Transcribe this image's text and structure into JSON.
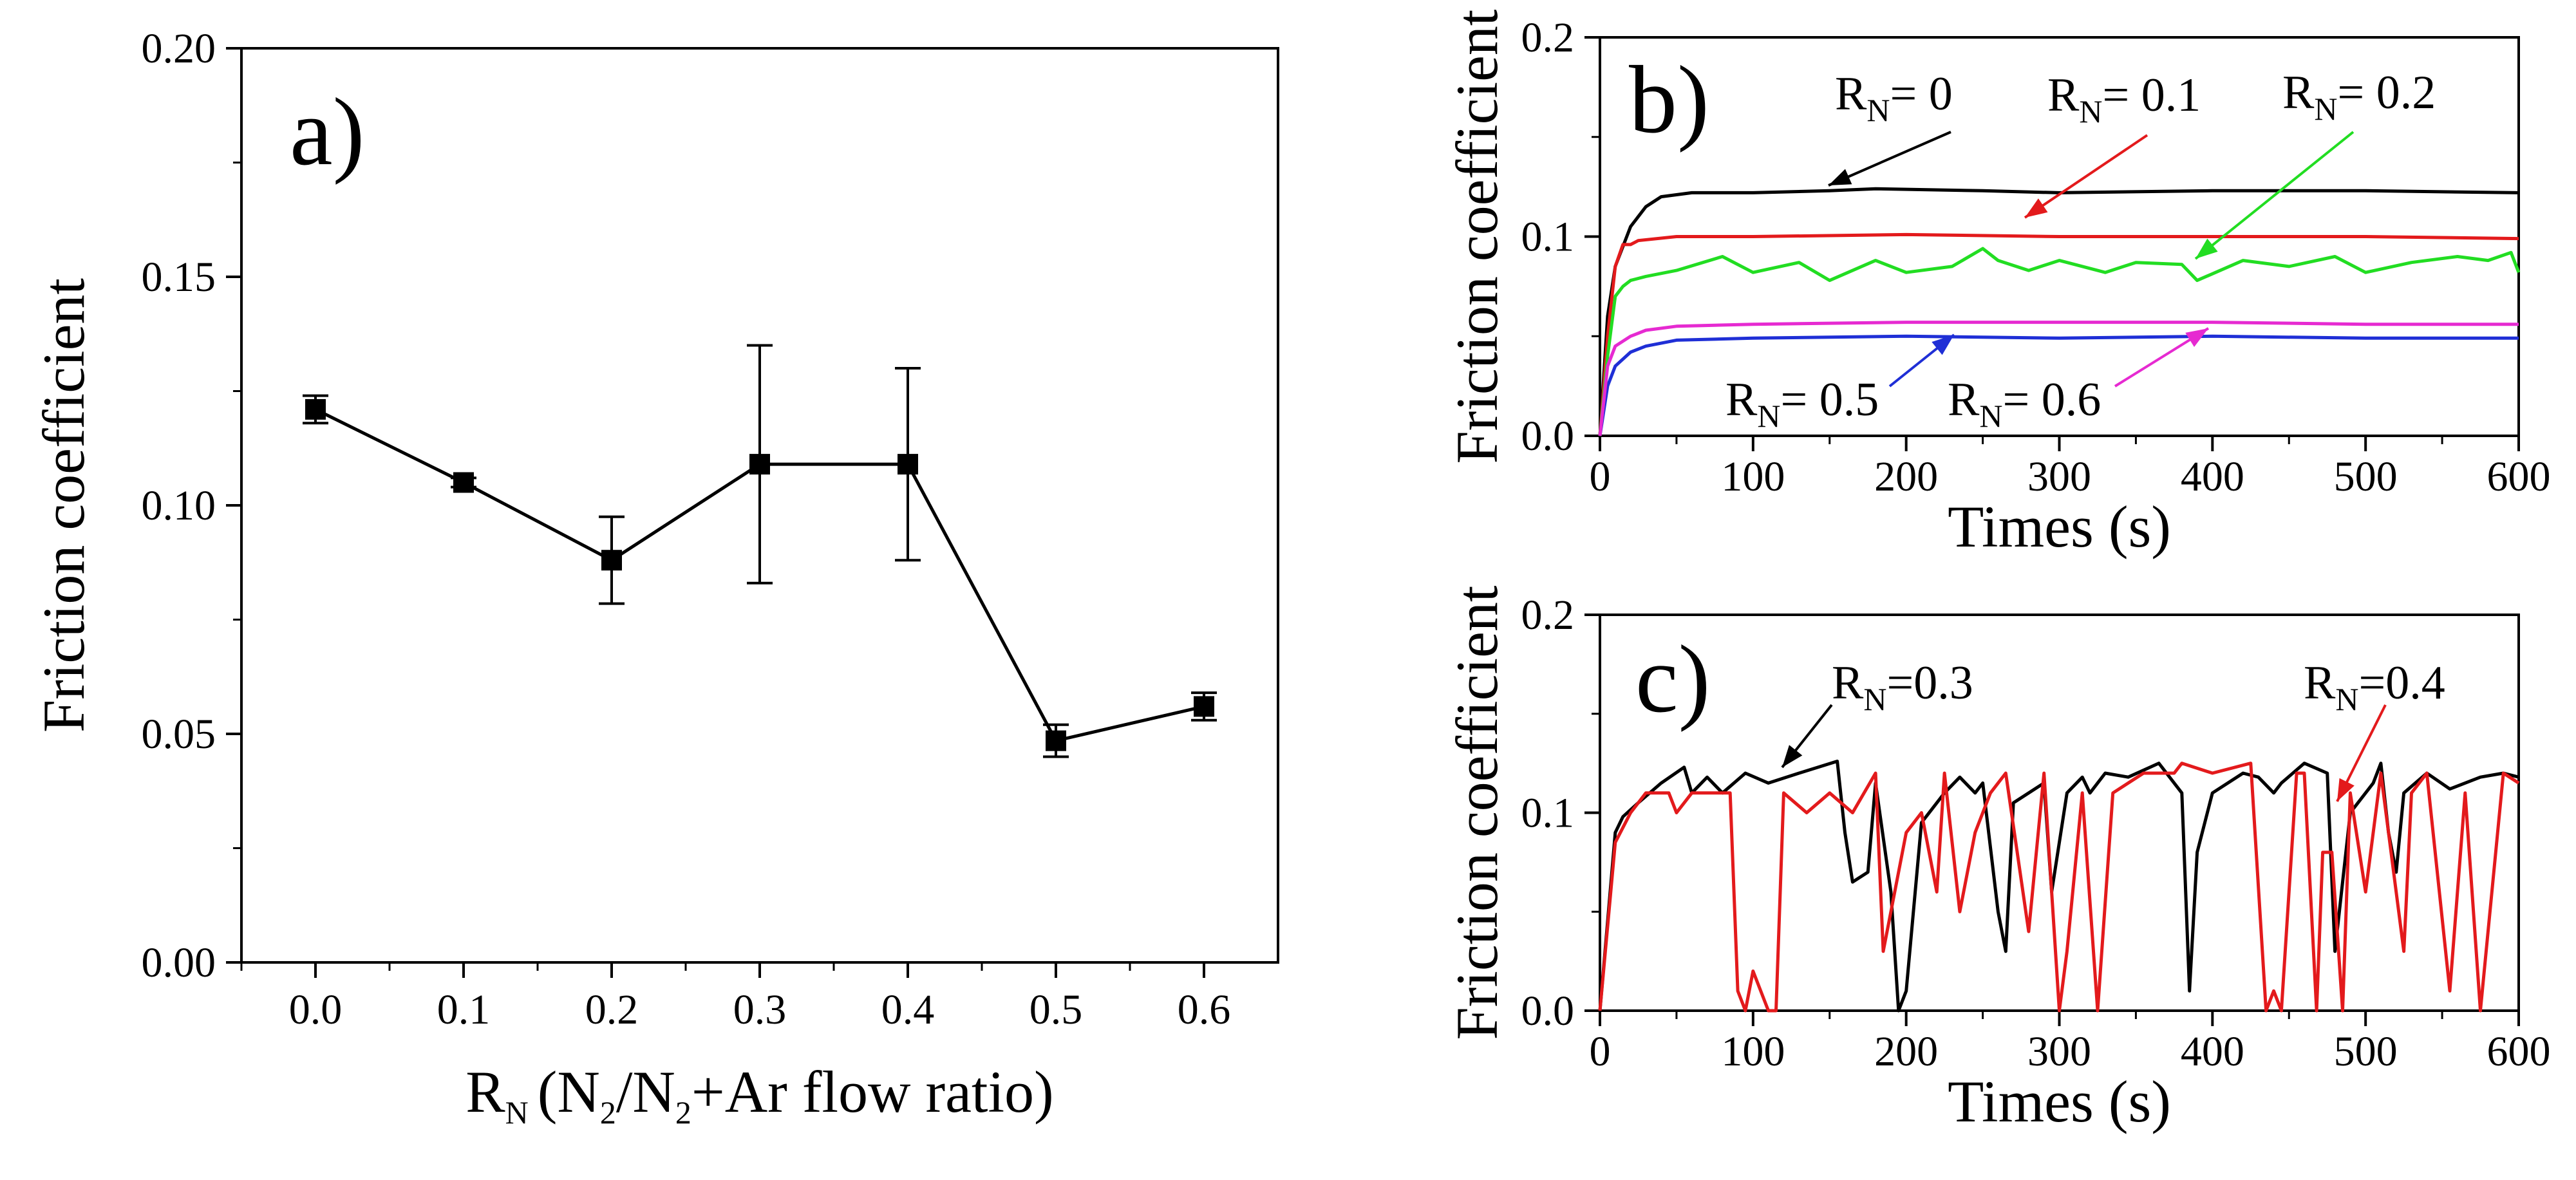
{
  "chart_data": [
    {
      "id": "a",
      "type": "line",
      "panel_label": "a)",
      "xlabel_main": "R",
      "xlabel_sub": "N",
      "xlabel_rest": "(N",
      "xlabel_sub2": "2",
      "xlabel_rest2": "/N",
      "xlabel_sub3": "2",
      "xlabel_rest3": "+Ar flow ratio)",
      "ylabel": "Friction coefficient",
      "xlim": [
        -0.05,
        0.65
      ],
      "ylim": [
        0,
        0.2
      ],
      "xticks": [
        "0.0",
        "0.1",
        "0.2",
        "0.3",
        "0.4",
        "0.5",
        "0.6"
      ],
      "yticks": [
        "0.00",
        "0.05",
        "0.10",
        "0.15",
        "0.20"
      ],
      "x": [
        0.0,
        0.1,
        0.2,
        0.3,
        0.4,
        0.5,
        0.6
      ],
      "y": [
        0.121,
        0.105,
        0.088,
        0.109,
        0.109,
        0.0485,
        0.056
      ],
      "err": [
        0.003,
        0.001,
        0.0095,
        0.026,
        0.021,
        0.0035,
        0.003
      ],
      "color": "#000000"
    },
    {
      "id": "b",
      "type": "line",
      "panel_label": "b)",
      "xlabel": "Times (s)",
      "ylabel": "Friction coefficient",
      "xlim": [
        0,
        600
      ],
      "ylim": [
        0,
        0.2
      ],
      "xticks": [
        "0",
        "100",
        "200",
        "300",
        "400",
        "500",
        "600"
      ],
      "yticks": [
        "0.0",
        "0.1",
        "0.2"
      ],
      "series": [
        {
          "name": "R_N = 0",
          "label_main": "R",
          "label_sub": "N",
          "label_rest": "= 0",
          "color": "#000000",
          "x": [
            0,
            5,
            10,
            20,
            30,
            40,
            60,
            100,
            150,
            180,
            250,
            300,
            400,
            500,
            600
          ],
          "y": [
            0,
            0.06,
            0.085,
            0.105,
            0.115,
            0.12,
            0.122,
            0.122,
            0.123,
            0.124,
            0.123,
            0.122,
            0.123,
            0.123,
            0.122
          ]
        },
        {
          "name": "R_N = 0.1",
          "label_main": "R",
          "label_sub": "N",
          "label_rest": "= 0.1",
          "color": "#e31a1c",
          "x": [
            0,
            5,
            10,
            15,
            20,
            25,
            50,
            100,
            200,
            300,
            400,
            500,
            600
          ],
          "y": [
            0,
            0.05,
            0.085,
            0.096,
            0.096,
            0.098,
            0.1,
            0.1,
            0.101,
            0.1,
            0.1,
            0.1,
            0.099
          ]
        },
        {
          "name": "R_N = 0.2",
          "label_main": "R",
          "label_sub": "N",
          "label_rest": "= 0.2",
          "color": "#22dd22",
          "x": [
            0,
            5,
            10,
            15,
            20,
            30,
            50,
            80,
            100,
            130,
            150,
            180,
            200,
            230,
            250,
            260,
            280,
            300,
            330,
            350,
            380,
            390,
            420,
            450,
            480,
            500,
            530,
            560,
            580,
            595,
            600
          ],
          "y": [
            0,
            0.04,
            0.07,
            0.075,
            0.078,
            0.08,
            0.083,
            0.09,
            0.082,
            0.087,
            0.078,
            0.088,
            0.082,
            0.085,
            0.094,
            0.088,
            0.083,
            0.088,
            0.082,
            0.087,
            0.086,
            0.078,
            0.088,
            0.085,
            0.09,
            0.082,
            0.087,
            0.09,
            0.088,
            0.092,
            0.082
          ]
        },
        {
          "name": "R_N = 0.5",
          "label_main": "R",
          "label_sub": "N",
          "label_rest": "= 0.5",
          "color": "#1f2fd6",
          "x": [
            0,
            5,
            10,
            20,
            30,
            50,
            100,
            200,
            300,
            400,
            500,
            600
          ],
          "y": [
            0,
            0.025,
            0.035,
            0.042,
            0.045,
            0.048,
            0.049,
            0.05,
            0.049,
            0.05,
            0.049,
            0.049
          ]
        },
        {
          "name": "R_N = 0.6",
          "label_main": "R",
          "label_sub": "N",
          "label_rest": "= 0.6",
          "color": "#e62ad1",
          "x": [
            0,
            5,
            10,
            20,
            30,
            50,
            100,
            200,
            300,
            400,
            500,
            600
          ],
          "y": [
            0,
            0.035,
            0.045,
            0.05,
            0.053,
            0.055,
            0.056,
            0.057,
            0.057,
            0.057,
            0.056,
            0.056
          ]
        }
      ]
    },
    {
      "id": "c",
      "type": "line",
      "panel_label": "c)",
      "xlabel": "Times (s)",
      "ylabel": "Friction coefficient",
      "xlim": [
        0,
        600
      ],
      "ylim": [
        0,
        0.2
      ],
      "xticks": [
        "0",
        "100",
        "200",
        "300",
        "400",
        "500",
        "600"
      ],
      "yticks": [
        "0.0",
        "0.1",
        "0.2"
      ],
      "series": [
        {
          "name": "R_N=0.3",
          "label_main": "R",
          "label_sub": "N",
          "label_rest": "=0.3",
          "color": "#000000",
          "x": [
            0,
            10,
            15,
            25,
            40,
            55,
            60,
            70,
            80,
            95,
            110,
            130,
            155,
            160,
            165,
            175,
            180,
            190,
            195,
            200,
            210,
            225,
            235,
            245,
            250,
            260,
            265,
            270,
            290,
            295,
            305,
            315,
            320,
            330,
            345,
            365,
            380,
            385,
            390,
            400,
            420,
            430,
            440,
            445,
            460,
            475,
            480,
            490,
            505,
            510,
            515,
            520,
            525,
            540,
            555,
            575,
            590,
            600
          ],
          "y": [
            0,
            0.09,
            0.098,
            0.105,
            0.115,
            0.123,
            0.11,
            0.118,
            0.11,
            0.12,
            0.115,
            0.12,
            0.126,
            0.09,
            0.065,
            0.07,
            0.115,
            0.06,
            0.0,
            0.01,
            0.095,
            0.11,
            0.118,
            0.11,
            0.115,
            0.05,
            0.03,
            0.105,
            0.115,
            0.06,
            0.11,
            0.118,
            0.11,
            0.12,
            0.118,
            0.125,
            0.11,
            0.01,
            0.08,
            0.11,
            0.12,
            0.118,
            0.11,
            0.115,
            0.125,
            0.12,
            0.03,
            0.1,
            0.115,
            0.125,
            0.09,
            0.07,
            0.11,
            0.12,
            0.112,
            0.118,
            0.12,
            0.118
          ]
        },
        {
          "name": "R_N=0.4",
          "label_main": "R",
          "label_sub": "N",
          "label_rest": "=0.4",
          "color": "#e31a1c",
          "x": [
            0,
            10,
            20,
            30,
            45,
            50,
            60,
            85,
            90,
            95,
            100,
            110,
            115,
            120,
            135,
            150,
            165,
            180,
            185,
            200,
            210,
            220,
            225,
            235,
            245,
            255,
            265,
            280,
            290,
            300,
            305,
            315,
            325,
            335,
            355,
            375,
            380,
            400,
            425,
            435,
            440,
            445,
            455,
            460,
            468,
            472,
            478,
            485,
            490,
            500,
            510,
            525,
            530,
            540,
            555,
            565,
            575,
            590,
            600
          ],
          "y": [
            0,
            0.085,
            0.1,
            0.11,
            0.11,
            0.1,
            0.11,
            0.11,
            0.01,
            0.0,
            0.02,
            0.0,
            0.0,
            0.11,
            0.1,
            0.11,
            0.1,
            0.12,
            0.03,
            0.09,
            0.1,
            0.06,
            0.12,
            0.05,
            0.09,
            0.11,
            0.12,
            0.04,
            0.12,
            0.0,
            0.03,
            0.11,
            0.0,
            0.11,
            0.12,
            0.12,
            0.125,
            0.12,
            0.125,
            0.0,
            0.01,
            0.0,
            0.12,
            0.12,
            0.0,
            0.08,
            0.08,
            0.0,
            0.11,
            0.06,
            0.12,
            0.03,
            0.11,
            0.12,
            0.01,
            0.11,
            0.0,
            0.12,
            0.115
          ]
        }
      ]
    }
  ]
}
